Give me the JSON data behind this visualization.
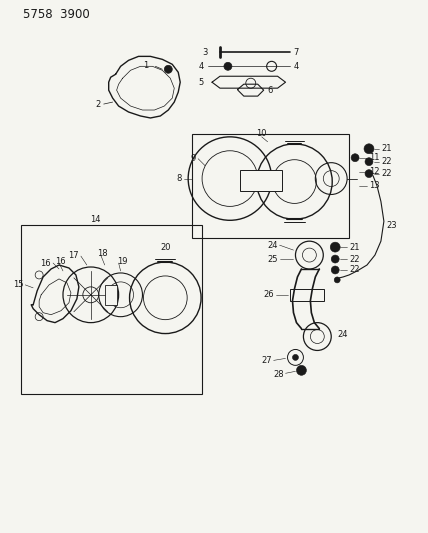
{
  "title": "5 7 5 8   3 9 0 0",
  "bg_color": "#f5f5f0",
  "fig_width": 4.28,
  "fig_height": 5.33,
  "dpi": 100,
  "line_color": "#1a1a1a",
  "label_fontsize": 6.0,
  "title_fontsize": 8.5
}
